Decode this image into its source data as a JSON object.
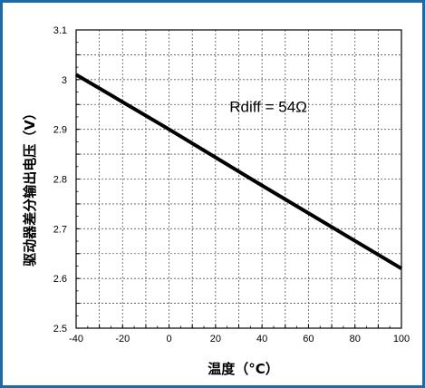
{
  "chart_data": {
    "type": "line",
    "title": "",
    "xlabel": "温度（°C）",
    "ylabel": "驱动器差分输出电压（V）",
    "xlim": [
      -40,
      100
    ],
    "ylim": [
      2.5,
      3.1
    ],
    "xticks": [
      -40,
      -20,
      0,
      20,
      40,
      60,
      80,
      100
    ],
    "xtick_labels": [
      "-40",
      "-20",
      "0",
      "20",
      "40",
      "60",
      "80",
      "100"
    ],
    "yticks": [
      2.5,
      2.6,
      2.7,
      2.8,
      2.9,
      3.0,
      3.1
    ],
    "ytick_labels": [
      "2.5",
      "2.6",
      "2.7",
      "2.8",
      "2.9",
      "3",
      "3.1"
    ],
    "grid": true,
    "series": [
      {
        "x": [
          -40,
          0,
          40,
          100
        ],
        "y": [
          3.01,
          2.9,
          2.787,
          2.62
        ],
        "color": "#000000"
      }
    ],
    "annotation": "Rdiff = 54Ω"
  }
}
